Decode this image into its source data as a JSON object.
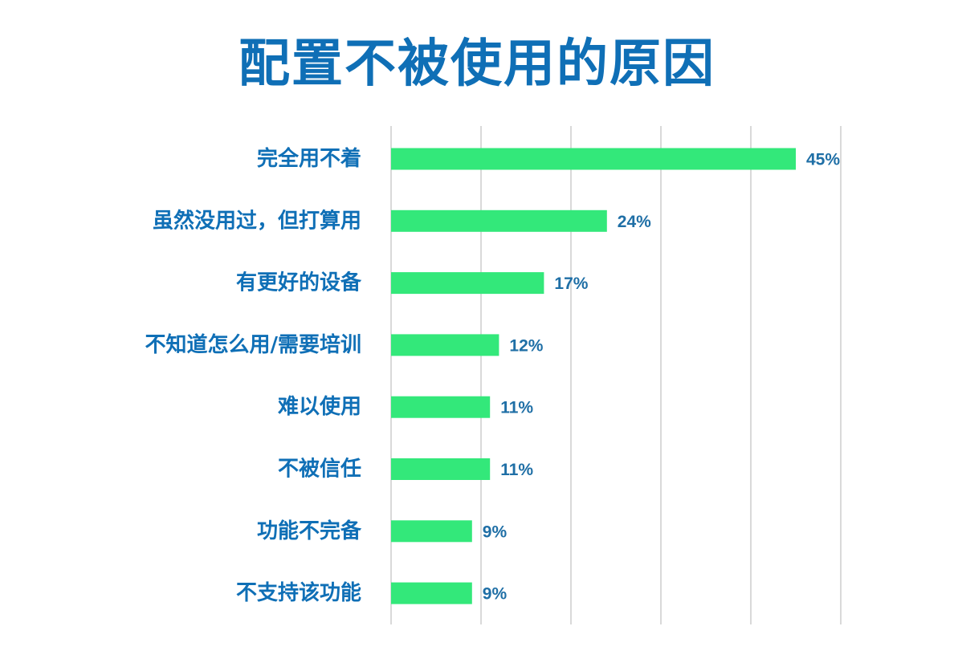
{
  "chart_data": {
    "type": "bar",
    "orientation": "horizontal",
    "title": "配置不被使用的原因",
    "categories": [
      "完全用不着",
      "虽然没用过，但打算用",
      "有更好的设备",
      "不知道怎么用/需要培训",
      "难以使用",
      "不被信任",
      "功能不完备",
      "不支持该功能"
    ],
    "values": [
      45,
      24,
      17,
      12,
      11,
      11,
      9,
      9
    ],
    "value_labels": [
      "45%",
      "24%",
      "17%",
      "12%",
      "11%",
      "11%",
      "9%",
      "9%"
    ],
    "xlim": [
      0,
      50
    ],
    "grid": true,
    "legend": "none",
    "colors": {
      "bar": "#33e87a",
      "title": "#0f6fb6",
      "label": "#0f6fb6",
      "value": "#1f6fa6",
      "grid": "#d9d9d9"
    }
  }
}
